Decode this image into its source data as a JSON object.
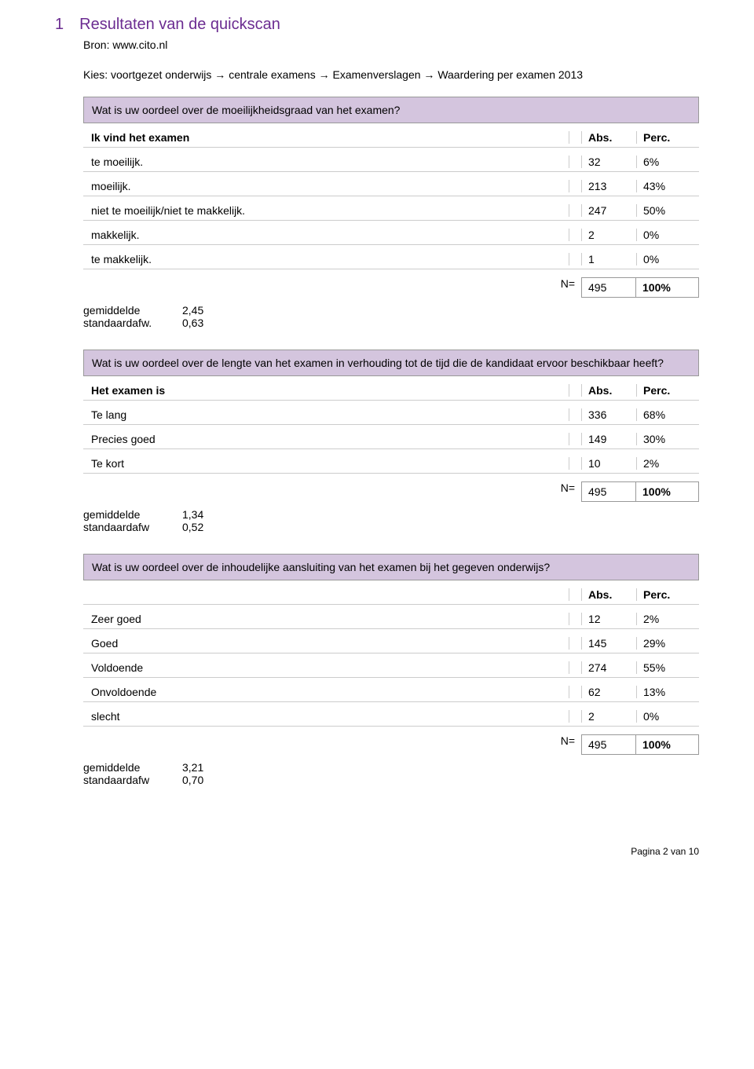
{
  "header": {
    "section_number": "1",
    "title": "Resultaten van de quickscan",
    "source": "Bron: www.cito.nl",
    "breadcrumb": "Kies: voortgezet onderwijs → centrale examens → Examenverslagen → Waardering per examen 2013"
  },
  "table1": {
    "question": "Wat is uw oordeel over de moeilijkheidsgraad van het examen?",
    "header_label": "Ik vind het examen",
    "abs_header": "Abs.",
    "perc_header": "Perc.",
    "rows": [
      {
        "label": "te moeilijk.",
        "abs": "32",
        "perc": "6%"
      },
      {
        "label": "moeilijk.",
        "abs": "213",
        "perc": "43%"
      },
      {
        "label": "niet te moeilijk/niet te makkelijk.",
        "abs": "247",
        "perc": "50%"
      },
      {
        "label": "makkelijk.",
        "abs": "2",
        "perc": "0%"
      },
      {
        "label": "te makkelijk.",
        "abs": "1",
        "perc": "0%"
      }
    ],
    "total": {
      "n_label": "N=",
      "abs": "495",
      "perc": "100%"
    },
    "stats": {
      "mean_label": "gemiddelde",
      "mean_value": "2,45",
      "sd_label": "standaardafw.",
      "sd_value": "0,63"
    }
  },
  "table2": {
    "question": "Wat is uw oordeel over de lengte van het examen in verhouding tot de tijd die de kandidaat ervoor beschikbaar heeft?",
    "header_label": "Het examen is",
    "abs_header": "Abs.",
    "perc_header": "Perc.",
    "rows": [
      {
        "label": "Te lang",
        "abs": "336",
        "perc": "68%"
      },
      {
        "label": "Precies goed",
        "abs": "149",
        "perc": "30%"
      },
      {
        "label": "Te kort",
        "abs": "10",
        "perc": "2%"
      }
    ],
    "total": {
      "n_label": "N=",
      "abs": "495",
      "perc": "100%"
    },
    "stats": {
      "mean_label": "gemiddelde",
      "mean_value": "1,34",
      "sd_label": "standaardafw",
      "sd_value": "0,52"
    }
  },
  "table3": {
    "question": "Wat is uw oordeel over de inhoudelijke aansluiting van het examen bij het gegeven onderwijs?",
    "header_label": "",
    "abs_header": "Abs.",
    "perc_header": "Perc.",
    "rows": [
      {
        "label": "Zeer goed",
        "abs": "12",
        "perc": "2%"
      },
      {
        "label": "Goed",
        "abs": "145",
        "perc": "29%"
      },
      {
        "label": "Voldoende",
        "abs": "274",
        "perc": "55%"
      },
      {
        "label": "Onvoldoende",
        "abs": "62",
        "perc": "13%"
      },
      {
        "label": "slecht",
        "abs": "2",
        "perc": "0%"
      }
    ],
    "total": {
      "n_label": "N=",
      "abs": "495",
      "perc": "100%"
    },
    "stats": {
      "mean_label": "gemiddelde",
      "mean_value": "3,21",
      "sd_label": "standaardafw",
      "sd_value": "0,70"
    }
  },
  "footer": {
    "page": "Pagina 2 van 10"
  },
  "colors": {
    "heading": "#6b2c91",
    "question_bg": "#d4c5de",
    "border": "#999999",
    "divider": "#cccccc",
    "text": "#000000"
  }
}
